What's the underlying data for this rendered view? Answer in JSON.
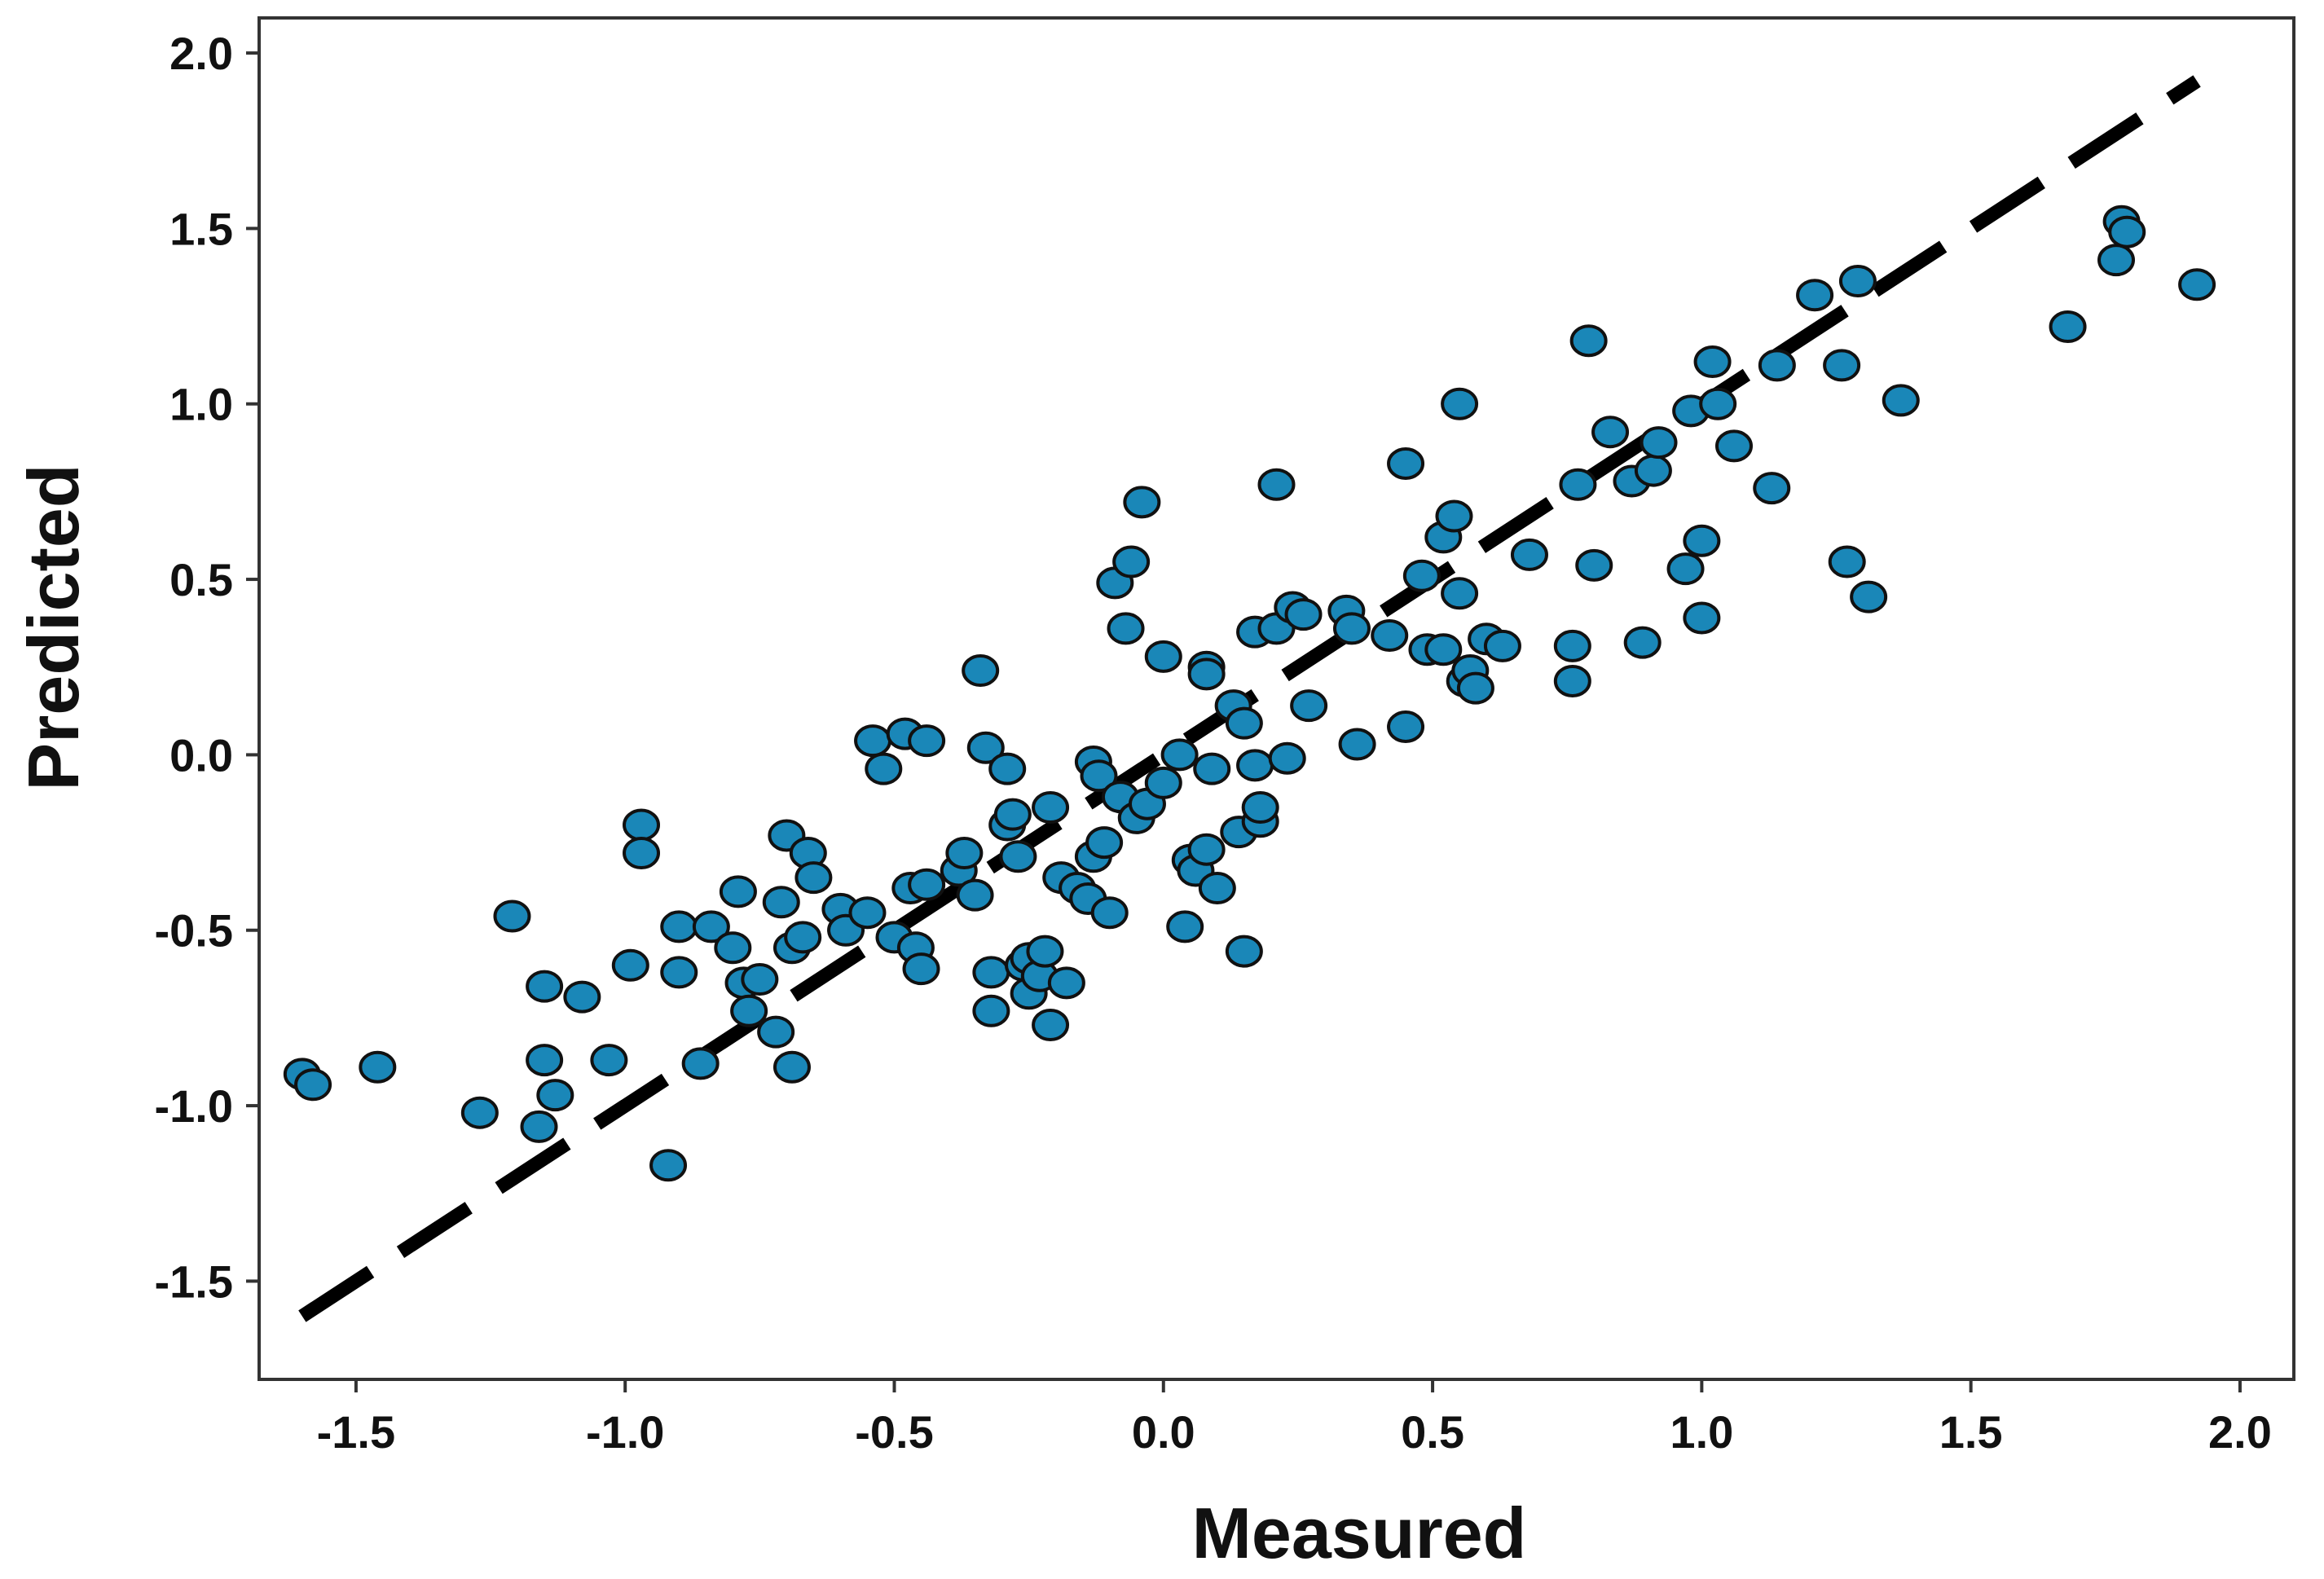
{
  "chart_data": {
    "type": "scatter",
    "title": "",
    "xlabel": "Measured",
    "ylabel": "Predicted",
    "xlim": [
      -1.68,
      2.1
    ],
    "ylim": [
      -1.78,
      2.1
    ],
    "x_ticks": [
      -1.5,
      -1.0,
      -0.5,
      0.0,
      0.5,
      1.0,
      1.5,
      2.0
    ],
    "y_ticks": [
      -1.5,
      -1.0,
      -0.5,
      0.0,
      0.5,
      1.0,
      1.5,
      2.0
    ],
    "x_tick_labels": [
      "-1.5",
      "-1.0",
      "-0.5",
      "0.0",
      "0.5",
      "1.0",
      "1.5",
      "2.0"
    ],
    "y_tick_labels": [
      "-1.5",
      "-1.0",
      "-0.5",
      "0.0",
      "0.5",
      "1.0",
      "1.5",
      "2.0"
    ],
    "grid": false,
    "legend": "none",
    "colors": {
      "marker_fill": "#1a87b8",
      "marker_edge": "#111111",
      "reference_line": "#000000",
      "axes": "#333333"
    },
    "reference_line": {
      "style": "dashed",
      "x": [
        -1.6,
        1.92
      ],
      "y": [
        -1.6,
        1.92
      ]
    },
    "series": [
      {
        "name": "samples",
        "points": [
          [
            -1.6,
            -0.91
          ],
          [
            -1.58,
            -0.94
          ],
          [
            -1.46,
            -0.89
          ],
          [
            -1.27,
            -1.02
          ],
          [
            -1.21,
            -0.46
          ],
          [
            -1.15,
            -0.66
          ],
          [
            -1.15,
            -0.87
          ],
          [
            -1.16,
            -1.06
          ],
          [
            -1.13,
            -0.97
          ],
          [
            -1.08,
            -0.69
          ],
          [
            -1.03,
            -0.87
          ],
          [
            -0.99,
            -0.6
          ],
          [
            -0.97,
            -0.2
          ],
          [
            -0.97,
            -0.28
          ],
          [
            -0.92,
            -1.17
          ],
          [
            -0.9,
            -0.49
          ],
          [
            -0.9,
            -0.62
          ],
          [
            -0.86,
            -0.88
          ],
          [
            -0.84,
            -0.49
          ],
          [
            -0.8,
            -0.55
          ],
          [
            -0.79,
            -0.39
          ],
          [
            -0.78,
            -0.65
          ],
          [
            -0.77,
            -0.73
          ],
          [
            -0.75,
            -0.64
          ],
          [
            -0.72,
            -0.79
          ],
          [
            -0.71,
            -0.42
          ],
          [
            -0.7,
            -0.23
          ],
          [
            -0.69,
            -0.55
          ],
          [
            -0.69,
            -0.89
          ],
          [
            -0.67,
            -0.52
          ],
          [
            -0.66,
            -0.28
          ],
          [
            -0.65,
            -0.35
          ],
          [
            -0.6,
            -0.44
          ],
          [
            -0.59,
            -0.5
          ],
          [
            -0.55,
            -0.45
          ],
          [
            -0.54,
            0.04
          ],
          [
            -0.52,
            -0.04
          ],
          [
            -0.5,
            -0.52
          ],
          [
            -0.48,
            0.06
          ],
          [
            -0.47,
            -0.38
          ],
          [
            -0.46,
            -0.55
          ],
          [
            -0.45,
            -0.61
          ],
          [
            -0.44,
            0.04
          ],
          [
            -0.44,
            -0.37
          ],
          [
            -0.38,
            -0.33
          ],
          [
            -0.37,
            -0.28
          ],
          [
            -0.35,
            -0.4
          ],
          [
            -0.34,
            0.24
          ],
          [
            -0.33,
            0.02
          ],
          [
            -0.32,
            -0.62
          ],
          [
            -0.32,
            -0.73
          ],
          [
            -0.29,
            -0.04
          ],
          [
            -0.29,
            -0.2
          ],
          [
            -0.28,
            -0.17
          ],
          [
            -0.27,
            -0.29
          ],
          [
            -0.26,
            -0.6
          ],
          [
            -0.25,
            -0.58
          ],
          [
            -0.25,
            -0.68
          ],
          [
            -0.23,
            -0.63
          ],
          [
            -0.22,
            -0.56
          ],
          [
            -0.21,
            -0.77
          ],
          [
            -0.21,
            -0.15
          ],
          [
            -0.19,
            -0.35
          ],
          [
            -0.18,
            -0.65
          ],
          [
            -0.16,
            -0.38
          ],
          [
            -0.14,
            -0.41
          ],
          [
            -0.13,
            -0.02
          ],
          [
            -0.13,
            -0.29
          ],
          [
            -0.12,
            -0.06
          ],
          [
            -0.11,
            -0.25
          ],
          [
            -0.1,
            -0.45
          ],
          [
            -0.09,
            0.49
          ],
          [
            -0.08,
            -0.12
          ],
          [
            -0.07,
            0.36
          ],
          [
            -0.06,
            0.55
          ],
          [
            -0.05,
            -0.18
          ],
          [
            -0.04,
            0.72
          ],
          [
            -0.03,
            -0.14
          ],
          [
            0.0,
            0.28
          ],
          [
            0.0,
            -0.08
          ],
          [
            0.03,
            0.0
          ],
          [
            0.04,
            -0.49
          ],
          [
            0.05,
            -0.3
          ],
          [
            0.06,
            -0.33
          ],
          [
            0.08,
            0.25
          ],
          [
            0.08,
            0.23
          ],
          [
            0.08,
            -0.27
          ],
          [
            0.09,
            -0.04
          ],
          [
            0.1,
            -0.38
          ],
          [
            0.13,
            0.14
          ],
          [
            0.14,
            -0.22
          ],
          [
            0.15,
            0.09
          ],
          [
            0.15,
            -0.56
          ],
          [
            0.17,
            -0.03
          ],
          [
            0.17,
            0.35
          ],
          [
            0.18,
            -0.19
          ],
          [
            0.18,
            -0.15
          ],
          [
            0.21,
            0.77
          ],
          [
            0.21,
            0.36
          ],
          [
            0.23,
            -0.01
          ],
          [
            0.24,
            0.42
          ],
          [
            0.26,
            0.4
          ],
          [
            0.27,
            0.14
          ],
          [
            0.34,
            0.41
          ],
          [
            0.35,
            0.36
          ],
          [
            0.36,
            0.03
          ],
          [
            0.42,
            0.34
          ],
          [
            0.45,
            0.83
          ],
          [
            0.45,
            0.08
          ],
          [
            0.48,
            0.51
          ],
          [
            0.49,
            0.3
          ],
          [
            0.52,
            0.62
          ],
          [
            0.52,
            0.3
          ],
          [
            0.54,
            0.68
          ],
          [
            0.55,
            1.0
          ],
          [
            0.55,
            0.46
          ],
          [
            0.56,
            0.21
          ],
          [
            0.57,
            0.24
          ],
          [
            0.58,
            0.19
          ],
          [
            0.6,
            0.33
          ],
          [
            0.63,
            0.31
          ],
          [
            0.68,
            0.57
          ],
          [
            0.76,
            0.31
          ],
          [
            0.76,
            0.21
          ],
          [
            0.77,
            0.77
          ],
          [
            0.79,
            1.18
          ],
          [
            0.8,
            0.54
          ],
          [
            0.83,
            0.92
          ],
          [
            0.87,
            0.78
          ],
          [
            0.89,
            0.32
          ],
          [
            0.91,
            0.81
          ],
          [
            0.92,
            0.89
          ],
          [
            0.97,
            0.53
          ],
          [
            0.98,
            0.98
          ],
          [
            1.0,
            0.61
          ],
          [
            1.0,
            0.39
          ],
          [
            1.02,
            1.12
          ],
          [
            1.03,
            1.0
          ],
          [
            1.06,
            0.88
          ],
          [
            1.13,
            0.76
          ],
          [
            1.14,
            1.11
          ],
          [
            1.21,
            1.31
          ],
          [
            1.26,
            1.11
          ],
          [
            1.27,
            0.55
          ],
          [
            1.29,
            1.35
          ],
          [
            1.31,
            0.45
          ],
          [
            1.37,
            1.01
          ],
          [
            1.68,
            1.22
          ],
          [
            1.77,
            1.41
          ],
          [
            1.78,
            1.52
          ],
          [
            1.79,
            1.49
          ],
          [
            1.92,
            1.34
          ]
        ]
      }
    ]
  }
}
